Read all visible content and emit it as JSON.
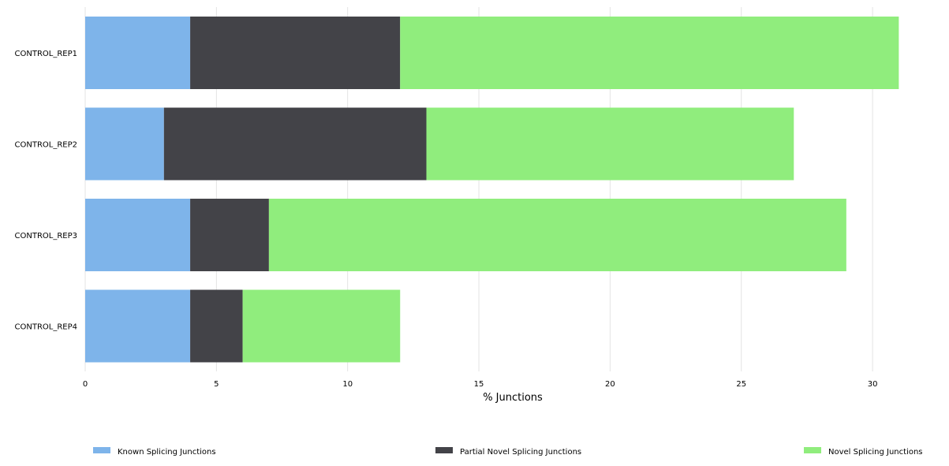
{
  "chart_data": {
    "type": "bar",
    "orientation": "horizontal",
    "stacked": true,
    "categories": [
      "CONTROL_REP1",
      "CONTROL_REP2",
      "CONTROL_REP3",
      "CONTROL_REP4"
    ],
    "series": [
      {
        "name": "Known Splicing Junctions",
        "values": [
          4,
          3,
          4,
          4
        ],
        "color": "#7eb4ea"
      },
      {
        "name": "Partial Novel Splicing Junctions",
        "values": [
          8,
          10,
          3,
          2
        ],
        "color": "#434348"
      },
      {
        "name": "Novel Splicing Junctions",
        "values": [
          19,
          14,
          22,
          6
        ],
        "color": "#90ed7d"
      }
    ],
    "xlabel": "% Junctions",
    "ylabel": "",
    "xlim": [
      0,
      31.5
    ],
    "xticks": [
      0,
      5,
      10,
      15,
      20,
      25,
      30
    ],
    "grid": true,
    "legend_position": "bottom"
  }
}
